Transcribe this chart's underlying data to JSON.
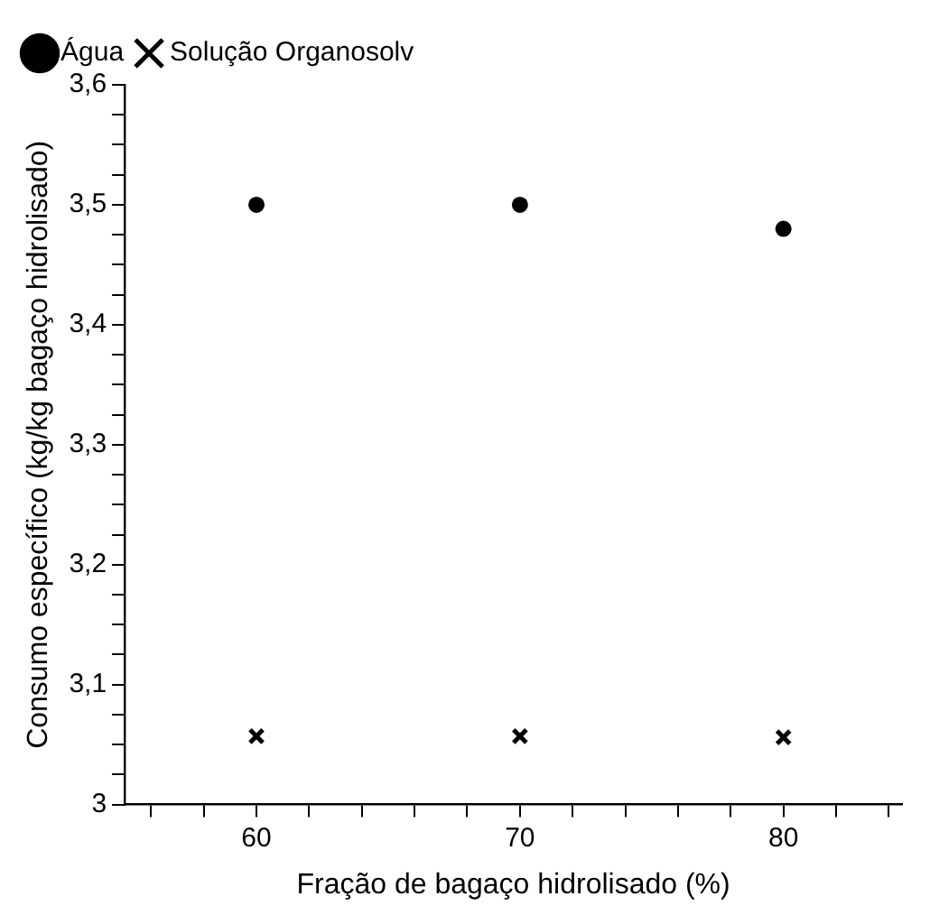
{
  "chart_data": {
    "type": "scatter",
    "xlabel": "Fração de bagaço hidrolisado (%)",
    "ylabel": "Consumo específico (kg/kg bagaço hidrolisado)",
    "x": [
      60,
      70,
      80
    ],
    "series": [
      {
        "name": "Água",
        "color": "#000000",
        "marker": "circle",
        "values": [
          3.5,
          3.5,
          3.48
        ]
      },
      {
        "name": "Solução Organosolv",
        "color": "#000000",
        "marker": "cross",
        "values": [
          3.057,
          3.057,
          3.056
        ]
      }
    ],
    "xlim": [
      55,
      84.5
    ],
    "xticks": [
      {
        "value": 56,
        "label": null
      },
      {
        "value": 58,
        "label": null
      },
      60,
      {
        "value": 62,
        "label": null
      },
      {
        "value": 64,
        "label": null
      },
      {
        "value": 66,
        "label": null
      },
      {
        "value": 68,
        "label": null
      },
      70,
      {
        "value": 72,
        "label": null
      },
      {
        "value": 74,
        "label": null
      },
      {
        "value": 76,
        "label": null
      },
      {
        "value": 78,
        "label": null
      },
      80,
      {
        "value": 82,
        "label": null
      },
      {
        "value": 84,
        "label": null
      }
    ],
    "ylim": [
      3,
      3.6
    ],
    "yticks": [
      3,
      {
        "value": 3.025,
        "label": null
      },
      {
        "value": 3.05,
        "label": null
      },
      {
        "value": 3.075,
        "label": null
      },
      {
        "value": 3.1,
        "label": "3,1"
      },
      {
        "value": 3.125,
        "label": null
      },
      {
        "value": 3.15,
        "label": null
      },
      {
        "value": 3.175,
        "label": null
      },
      {
        "value": 3.2,
        "label": "3,2"
      },
      {
        "value": 3.225,
        "label": null
      },
      {
        "value": 3.25,
        "label": null
      },
      {
        "value": 3.275,
        "label": null
      },
      {
        "value": 3.3,
        "label": "3,3"
      },
      {
        "value": 3.325,
        "label": null
      },
      {
        "value": 3.35,
        "label": null
      },
      {
        "value": 3.375,
        "label": null
      },
      {
        "value": 3.4,
        "label": "3,4"
      },
      {
        "value": 3.425,
        "label": null
      },
      {
        "value": 3.45,
        "label": null
      },
      {
        "value": 3.475,
        "label": null
      },
      {
        "value": 3.5,
        "label": "3,5"
      },
      {
        "value": 3.525,
        "label": null
      },
      {
        "value": 3.55,
        "label": null
      },
      {
        "value": 3.575,
        "label": null
      },
      {
        "value": 3.6,
        "label": "3,6"
      }
    ],
    "grid": false,
    "legend": "top left"
  }
}
